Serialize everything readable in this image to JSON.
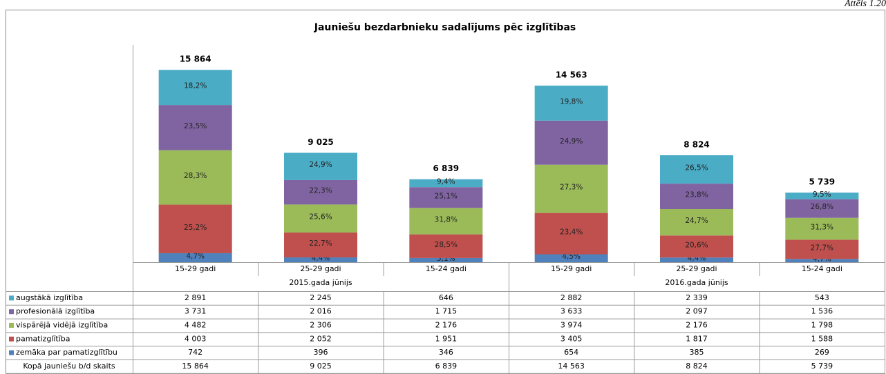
{
  "figure_label": "Attēls 1.20",
  "chart_data": {
    "type": "stacked_bar",
    "title": "Jauniešu bezdarbnieku sadalījums pēc izglītības",
    "categories": [
      "15-29 gadi",
      "25-29 gadi",
      "15-24 gadi",
      "15-29 gadi",
      "25-29 gadi",
      "15-24 gadi"
    ],
    "groups": [
      "2015.gada jūnijs",
      "2016.gada jūnijs"
    ],
    "series": [
      {
        "name": "zemāka par pamatizglītību",
        "color": "#4f81bd",
        "values": [
          742,
          396,
          346,
          654,
          385,
          269
        ],
        "value_labels": [
          "742",
          "396",
          "346",
          "654",
          "385",
          "269"
        ],
        "percents": [
          4.7,
          4.4,
          5.1,
          4.5,
          4.4,
          4.7
        ],
        "percent_labels": [
          "4,7%",
          "4,4%",
          "5,1%",
          "4,5%",
          "4,4%",
          "4,7%"
        ]
      },
      {
        "name": "pamatizglītība",
        "color": "#c0504d",
        "values": [
          4003,
          2052,
          1951,
          3405,
          1817,
          1588
        ],
        "value_labels": [
          "4 003",
          "2 052",
          "1 951",
          "3 405",
          "1 817",
          "1 588"
        ],
        "percents": [
          25.2,
          22.7,
          28.5,
          23.4,
          20.6,
          27.7
        ],
        "percent_labels": [
          "25,2%",
          "22,7%",
          "28,5%",
          "23,4%",
          "20,6%",
          "27,7%"
        ]
      },
      {
        "name": "vispārējā vidējā izglītība",
        "color": "#9bbb59",
        "values": [
          4482,
          2306,
          2176,
          3974,
          2176,
          1798
        ],
        "value_labels": [
          "4 482",
          "2 306",
          "2 176",
          "3 974",
          "2 176",
          "1 798"
        ],
        "percents": [
          28.3,
          25.6,
          31.8,
          27.3,
          24.7,
          31.3
        ],
        "percent_labels": [
          "28,3%",
          "25,6%",
          "31,8%",
          "27,3%",
          "24,7%",
          "31,3%"
        ]
      },
      {
        "name": "profesionālā izglītība",
        "color": "#8064a2",
        "values": [
          3731,
          2016,
          1715,
          3633,
          2097,
          1536
        ],
        "value_labels": [
          "3 731",
          "2 016",
          "1 715",
          "3 633",
          "2 097",
          "1 536"
        ],
        "percents": [
          23.5,
          22.3,
          25.1,
          24.9,
          23.8,
          26.8
        ],
        "percent_labels": [
          "23,5%",
          "22,3%",
          "25,1%",
          "24,9%",
          "23,8%",
          "26,8%"
        ]
      },
      {
        "name": "augstākā izglītība",
        "color": "#4bacc6",
        "values": [
          2891,
          2245,
          646,
          2882,
          2339,
          543
        ],
        "value_labels": [
          "2 891",
          "2 245",
          "646",
          "2 882",
          "2 339",
          "543"
        ],
        "percents": [
          18.2,
          24.9,
          9.4,
          19.8,
          26.5,
          9.5
        ],
        "percent_labels": [
          "18,2%",
          "24,9%",
          "9,4%",
          "19,8%",
          "26,5%",
          "9,5%"
        ]
      }
    ],
    "totals": {
      "name": "Kopā jauniešu b/d skaits",
      "values": [
        15864,
        9025,
        6839,
        14563,
        8824,
        5739
      ],
      "value_labels": [
        "15 864",
        "9 025",
        "6 839",
        "14 563",
        "8 824",
        "5 739"
      ]
    }
  }
}
